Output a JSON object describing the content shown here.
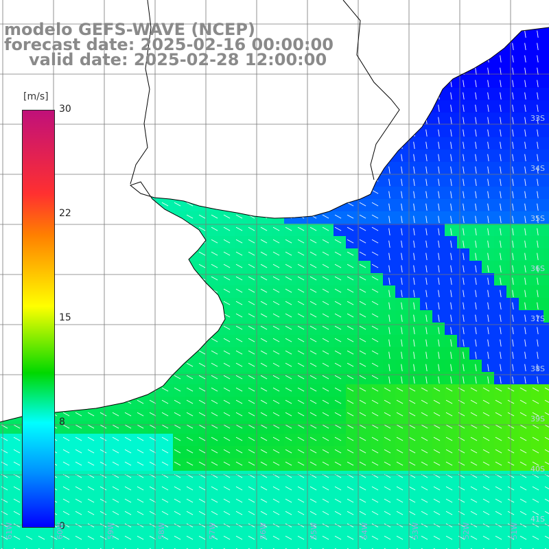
{
  "titles": {
    "line1": "modelo GEFS-WAVE (NCEP)",
    "line2": "forecast date: 2025-02-16 00:00:00",
    "line3": "valid date: 2025-02-28 12:00:00"
  },
  "colorbar": {
    "unit": "[m/s]",
    "ticks": [
      "30",
      "22",
      "15",
      "8",
      "0"
    ],
    "colors": [
      "#0000ff",
      "#0090ff",
      "#00ffff",
      "#00d800",
      "#ffff00",
      "#ff8000",
      "#ff3030",
      "#c0107a"
    ]
  },
  "lat_labels": [
    "33S",
    "34S",
    "35S",
    "36S",
    "37S",
    "38S",
    "39S",
    "40S",
    "41S"
  ],
  "lon_labels": [
    "61W",
    "60W",
    "59W",
    "58W",
    "57W",
    "56W",
    "55W",
    "54W",
    "53W",
    "52W",
    "51W"
  ],
  "map": {
    "land_color": "#ffffff",
    "coast_color": "#000000",
    "grid_color": "#777777",
    "arrow_color": "#ffffff"
  }
}
